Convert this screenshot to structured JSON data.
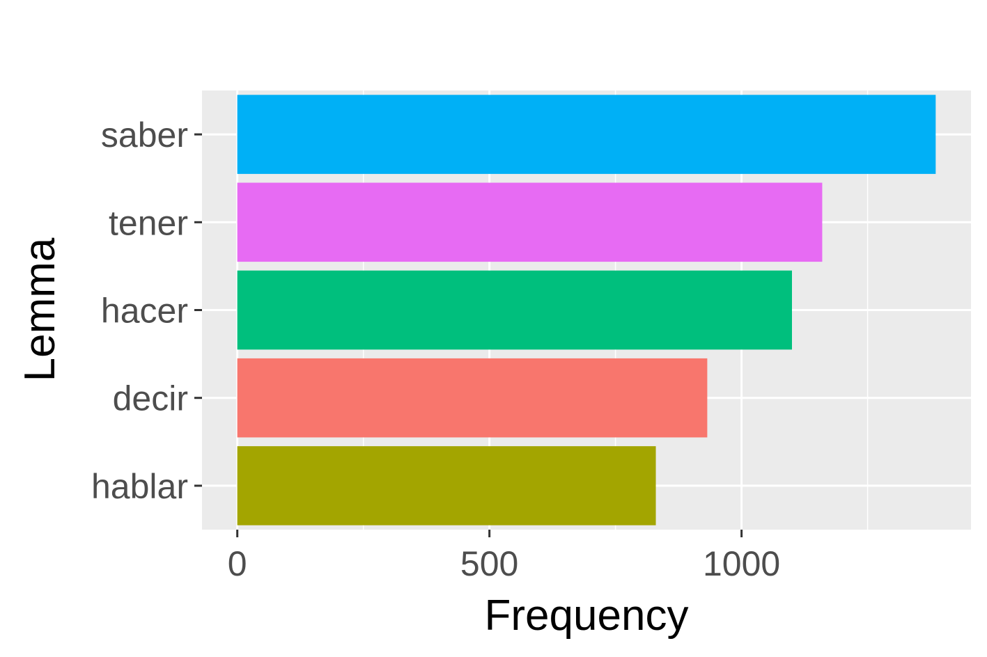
{
  "chart_data": {
    "type": "bar",
    "orientation": "horizontal",
    "title": "",
    "xlabel": "Frequency",
    "ylabel": "Lemma",
    "categories": [
      "saber",
      "tener",
      "hacer",
      "decir",
      "hablar"
    ],
    "values": [
      1385,
      1160,
      1100,
      932,
      830
    ],
    "colors": [
      "#00B0F6",
      "#E76BF3",
      "#00BF7D",
      "#F8766D",
      "#A3A500"
    ],
    "x_ticks": [
      0,
      500,
      1000
    ],
    "x_tick_labels": [
      "0",
      "500",
      "1000"
    ],
    "xlim": [
      -70,
      1455
    ],
    "grid": true,
    "legend": "none",
    "panel_background": "#EBEBEB",
    "grid_color": "#FFFFFF"
  }
}
